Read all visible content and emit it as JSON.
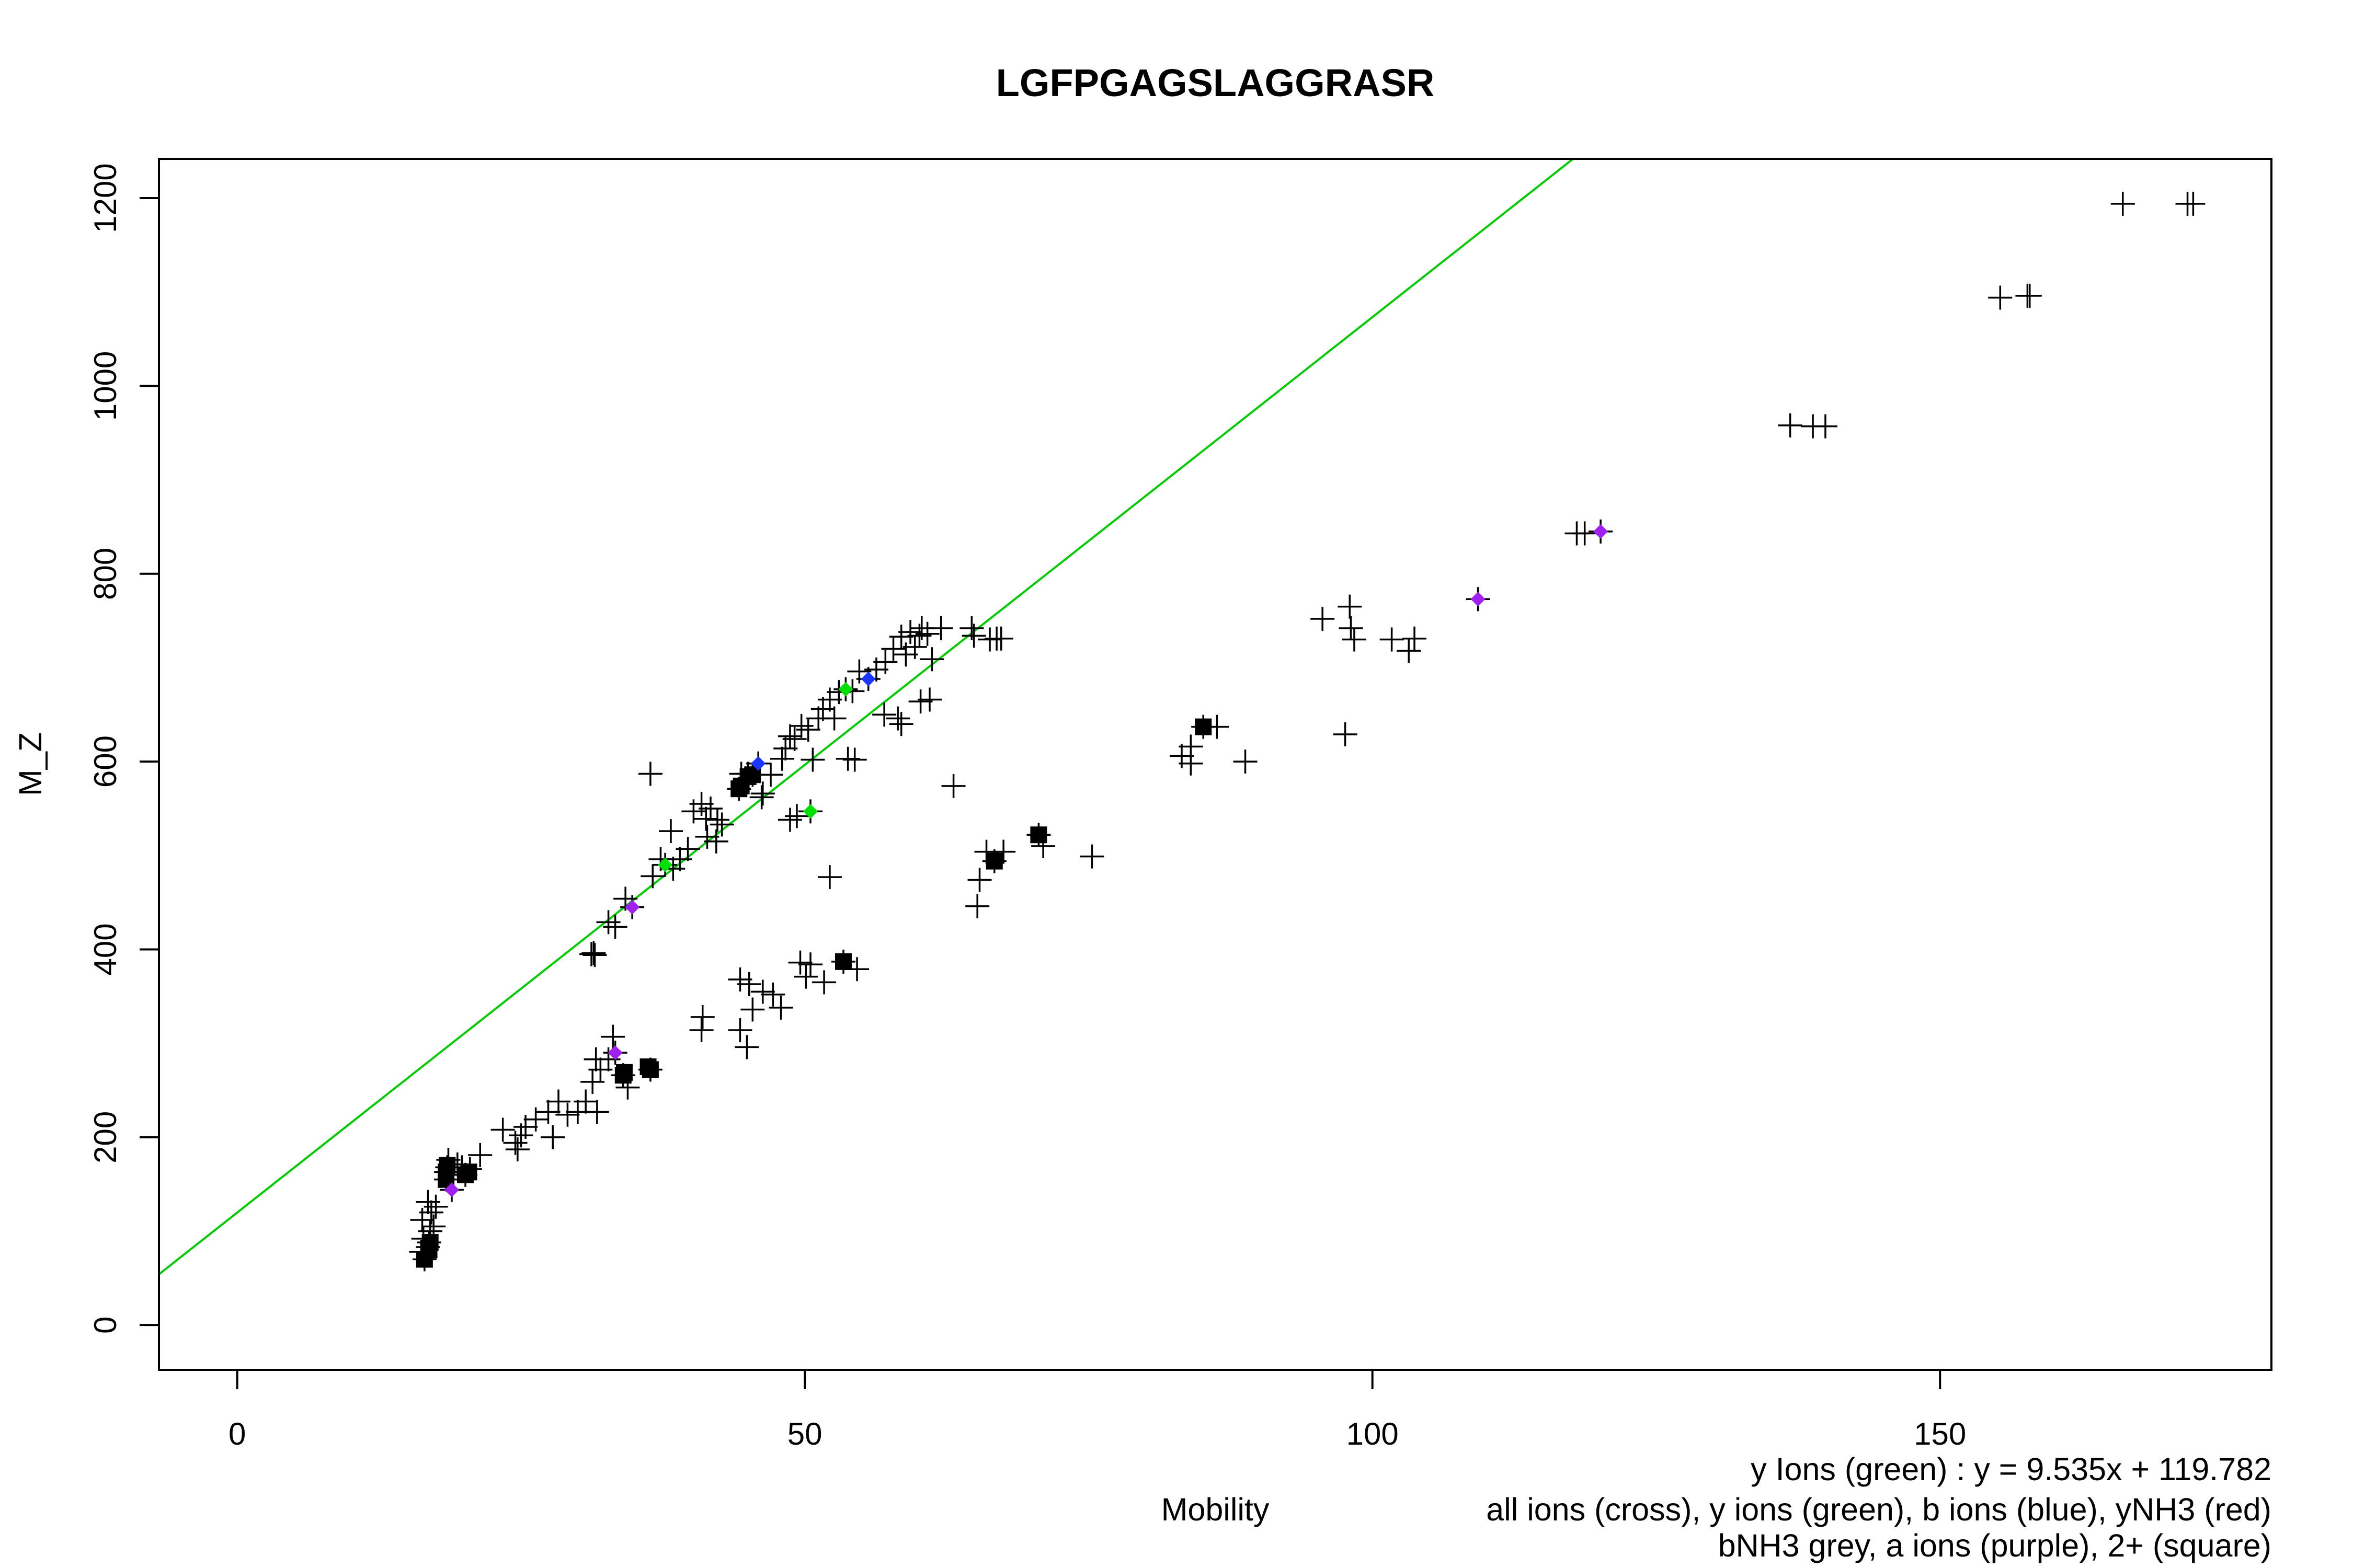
{
  "chart_data": {
    "type": "scatter",
    "title": "LGFPGAGSLAGGRASR",
    "xlabel": "Mobility",
    "ylabel": "M_Z",
    "xlim": [
      0,
      172.3
    ],
    "ylim": [
      0,
      1194
    ],
    "xticks": [
      0,
      50,
      100,
      150
    ],
    "yticks": [
      0,
      200,
      400,
      600,
      800,
      1000,
      1200
    ],
    "grid": false,
    "annotations": [
      "y Ions (green) : y = 9.535x + 119.782",
      "all ions (cross), y ions (green), b ions (blue), yNH3 (red)",
      "bNH3 grey, a ions (purple), 2+ (square)"
    ],
    "fit_line": {
      "slope": 9.535,
      "intercept": 119.782,
      "color": "#00cc00"
    },
    "series": [
      {
        "name": "all ions",
        "marker": "cross",
        "color": "#000000",
        "points": [
          [
            16.2,
            78
          ],
          [
            16.5,
            70
          ],
          [
            16.8,
            83
          ],
          [
            16.9,
            88
          ],
          [
            16.4,
            92
          ],
          [
            17.0,
            100
          ],
          [
            17.3,
            105
          ],
          [
            16.3,
            112
          ],
          [
            17.1,
            120
          ],
          [
            17.5,
            126
          ],
          [
            16.8,
            131
          ],
          [
            18.4,
            155
          ],
          [
            18.4,
            163
          ],
          [
            18.5,
            168
          ],
          [
            18.9,
            144
          ],
          [
            18.6,
            176
          ],
          [
            19.4,
            171
          ],
          [
            19.8,
            168
          ],
          [
            20.1,
            160
          ],
          [
            20.5,
            166
          ],
          [
            21.4,
            181
          ],
          [
            23.4,
            208
          ],
          [
            24.5,
            194
          ],
          [
            24.7,
            187
          ],
          [
            25.0,
            202
          ],
          [
            25.4,
            211
          ],
          [
            26.3,
            219
          ],
          [
            27.4,
            227
          ],
          [
            27.8,
            200
          ],
          [
            28.3,
            238
          ],
          [
            29.1,
            224
          ],
          [
            30.0,
            227
          ],
          [
            30.7,
            238
          ],
          [
            31.3,
            259
          ],
          [
            31.7,
            227
          ],
          [
            31.6,
            283
          ],
          [
            32.0,
            272
          ],
          [
            32.7,
            283
          ],
          [
            33.1,
            307
          ],
          [
            33.3,
            290
          ],
          [
            34.0,
            266
          ],
          [
            34.4,
            253
          ],
          [
            36.4,
            272
          ],
          [
            40.9,
            314
          ],
          [
            41.0,
            328
          ],
          [
            44.3,
            314
          ],
          [
            44.3,
            368
          ],
          [
            44.9,
            296
          ],
          [
            45.1,
            363
          ],
          [
            45.4,
            336
          ],
          [
            46.3,
            355
          ],
          [
            47.2,
            352
          ],
          [
            47.9,
            338
          ],
          [
            49.6,
            386
          ],
          [
            50.1,
            371
          ],
          [
            50.5,
            384
          ],
          [
            51.7,
            365
          ],
          [
            53.4,
            387
          ],
          [
            54.6,
            379
          ],
          [
            52.2,
            477
          ],
          [
            65.2,
            446
          ],
          [
            65.4,
            474
          ],
          [
            66.0,
            504
          ],
          [
            66.7,
            494
          ],
          [
            67.5,
            504
          ],
          [
            70.6,
            522
          ],
          [
            71.0,
            510
          ],
          [
            75.3,
            499
          ],
          [
            83.2,
            606
          ],
          [
            84.0,
            598
          ],
          [
            84.0,
            616
          ],
          [
            85.1,
            637
          ],
          [
            86.3,
            637
          ],
          [
            88.8,
            600
          ],
          [
            95.6,
            752
          ],
          [
            97.6,
            629
          ],
          [
            98.0,
            765
          ],
          [
            98.1,
            742
          ],
          [
            98.4,
            730
          ],
          [
            101.7,
            730
          ],
          [
            103.2,
            718
          ],
          [
            103.7,
            731
          ],
          [
            109.3,
            773
          ],
          [
            118.0,
            843
          ],
          [
            118.7,
            843
          ],
          [
            120.1,
            845
          ],
          [
            136.8,
            958
          ],
          [
            138.8,
            957
          ],
          [
            139.9,
            957
          ],
          [
            155.3,
            1094
          ],
          [
            157.7,
            1096
          ],
          [
            157.9,
            1096
          ],
          [
            166.1,
            1194
          ],
          [
            171.8,
            1194
          ],
          [
            172.3,
            1194
          ],
          [
            31.2,
            395
          ],
          [
            31.4,
            396
          ],
          [
            31.5,
            394
          ],
          [
            32.7,
            429
          ],
          [
            33.3,
            424
          ],
          [
            34.2,
            454
          ],
          [
            34.8,
            445
          ],
          [
            36.4,
            587
          ],
          [
            36.6,
            478
          ],
          [
            37.3,
            496
          ],
          [
            37.7,
            490
          ],
          [
            38.2,
            526
          ],
          [
            38.4,
            486
          ],
          [
            39.0,
            496
          ],
          [
            39.7,
            507
          ],
          [
            40.2,
            547
          ],
          [
            40.9,
            555
          ],
          [
            41.3,
            539
          ],
          [
            41.4,
            520
          ],
          [
            41.7,
            550
          ],
          [
            42.2,
            515
          ],
          [
            42.3,
            538
          ],
          [
            42.7,
            533
          ],
          [
            44.2,
            571
          ],
          [
            44.4,
            587
          ],
          [
            44.6,
            579
          ],
          [
            45.0,
            587
          ],
          [
            45.4,
            586
          ],
          [
            45.9,
            598
          ],
          [
            46.2,
            562
          ],
          [
            46.3,
            566
          ],
          [
            47.0,
            586
          ],
          [
            48.0,
            603
          ],
          [
            48.3,
            614
          ],
          [
            48.7,
            538
          ],
          [
            48.7,
            627
          ],
          [
            49.1,
            624
          ],
          [
            49.3,
            542
          ],
          [
            49.7,
            638
          ],
          [
            50.3,
            634
          ],
          [
            50.5,
            547
          ],
          [
            50.7,
            602
          ],
          [
            51.2,
            646
          ],
          [
            51.6,
            656
          ],
          [
            52.2,
            666
          ],
          [
            52.6,
            646
          ],
          [
            53.0,
            674
          ],
          [
            53.6,
            677
          ],
          [
            53.8,
            603
          ],
          [
            54.2,
            675
          ],
          [
            54.4,
            602
          ],
          [
            54.8,
            696
          ],
          [
            55.6,
            688
          ],
          [
            56.3,
            698
          ],
          [
            57.0,
            650
          ],
          [
            57.1,
            706
          ],
          [
            57.8,
            720
          ],
          [
            58.2,
            646
          ],
          [
            58.5,
            640
          ],
          [
            58.5,
            733
          ],
          [
            58.9,
            714
          ],
          [
            59.3,
            738
          ],
          [
            59.7,
            722
          ],
          [
            60.1,
            734
          ],
          [
            60.2,
            664
          ],
          [
            60.3,
            742
          ],
          [
            60.8,
            736
          ],
          [
            61.0,
            666
          ],
          [
            61.2,
            709
          ],
          [
            62.0,
            742
          ],
          [
            63.1,
            574
          ],
          [
            64.7,
            742
          ],
          [
            64.9,
            734
          ],
          [
            66.3,
            730
          ],
          [
            66.9,
            731
          ],
          [
            67.3,
            731
          ]
        ]
      },
      {
        "name": "2+",
        "marker": "square",
        "color": "#000000",
        "points": [
          [
            16.5,
            70
          ],
          [
            16.9,
            80
          ],
          [
            17.0,
            88
          ],
          [
            18.4,
            155
          ],
          [
            18.4,
            163
          ],
          [
            18.5,
            170
          ],
          [
            20.1,
            160
          ],
          [
            20.4,
            163
          ],
          [
            34.0,
            266
          ],
          [
            34.1,
            269
          ],
          [
            36.2,
            275
          ],
          [
            36.4,
            272
          ],
          [
            44.2,
            571
          ],
          [
            44.4,
            574
          ],
          [
            45.0,
            584
          ],
          [
            45.4,
            586
          ],
          [
            53.4,
            387
          ],
          [
            66.7,
            494
          ],
          [
            70.6,
            522
          ],
          [
            85.1,
            637
          ]
        ]
      },
      {
        "name": "y ions",
        "marker": "diamond",
        "color": "#00e000",
        "points": [
          [
            37.7,
            490
          ],
          [
            50.5,
            547
          ],
          [
            53.6,
            677
          ]
        ]
      },
      {
        "name": "b ions",
        "marker": "diamond",
        "color": "#1a35ff",
        "points": [
          [
            45.9,
            598
          ],
          [
            55.6,
            688
          ]
        ]
      },
      {
        "name": "a ions",
        "marker": "diamond",
        "color": "#a020f0",
        "points": [
          [
            18.9,
            144
          ],
          [
            33.3,
            290
          ],
          [
            34.8,
            445
          ],
          [
            109.3,
            773
          ],
          [
            120.1,
            845
          ]
        ]
      }
    ]
  }
}
